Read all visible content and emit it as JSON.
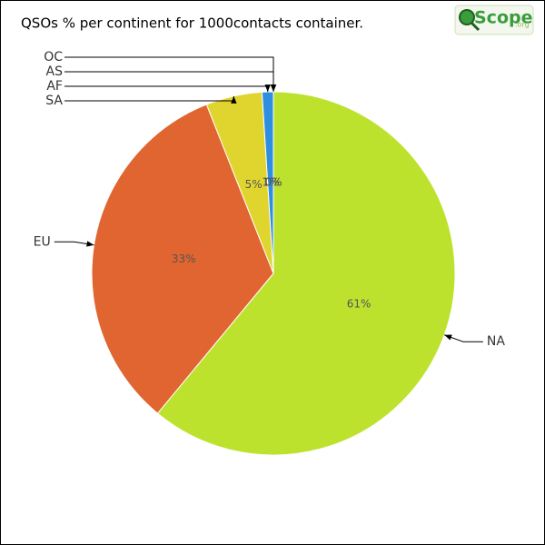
{
  "chart_data": {
    "type": "pie",
    "title": "QSOs % per continent for 1000contacts container.",
    "logo": {
      "text": "Scope",
      "suffix": ".org"
    },
    "categories": [
      "NA",
      "EU",
      "SA",
      "AF",
      "AS",
      "OC"
    ],
    "values": [
      61,
      33,
      5,
      1,
      0,
      0
    ],
    "value_labels": [
      "61%",
      "33%",
      "5%",
      "1%",
      "0%",
      "0%"
    ],
    "colors": [
      "#bde22e",
      "#e06530",
      "#e0d52e",
      "#2e8ee0",
      null,
      null
    ]
  }
}
